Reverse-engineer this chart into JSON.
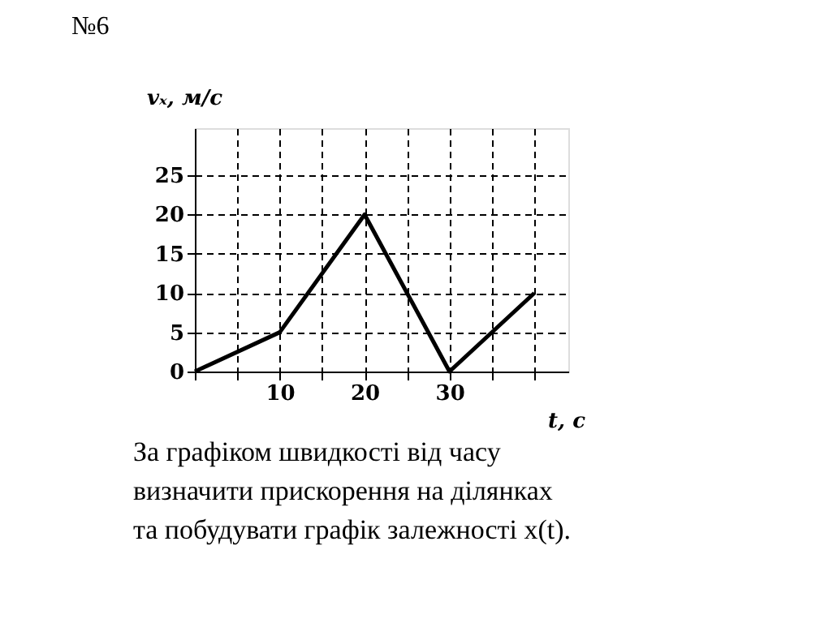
{
  "chart_data": {
    "type": "line",
    "title": "№6",
    "xlabel": "t, c",
    "ylabel": "vₓ, м/с",
    "x": [
      0,
      10,
      20,
      30,
      40
    ],
    "series": [
      {
        "color": "#000000",
        "values": [
          0,
          5,
          20,
          0,
          10
        ]
      }
    ],
    "xlim": [
      0,
      44
    ],
    "xticks": [
      {
        "value": 0,
        "label": null
      },
      {
        "value": 5,
        "label": null
      },
      10,
      {
        "value": 15,
        "label": null
      },
      20,
      {
        "value": 25,
        "label": null
      },
      30,
      {
        "value": 35,
        "label": null
      },
      {
        "value": 40,
        "label": null
      }
    ],
    "ylim": [
      0,
      31
    ],
    "yticks": [
      0,
      5,
      10,
      15,
      20,
      25
    ],
    "grid": true,
    "marker": "none",
    "line_style": "solid",
    "annotations": [
      "За графіком швидкості від часу",
      "визначити прискорення на ділянках",
      "та побудувати графік залежності x(t)."
    ]
  }
}
